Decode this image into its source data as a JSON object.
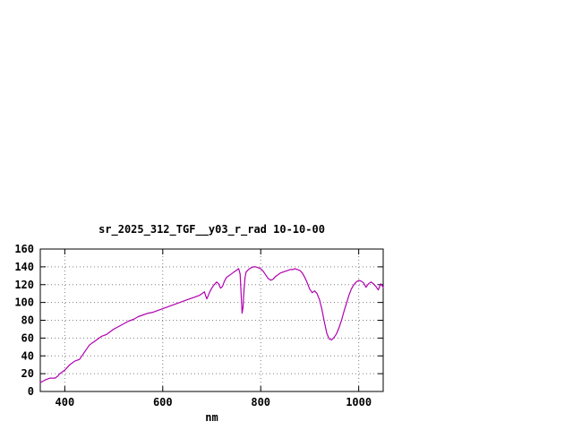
{
  "page": {
    "background": "#ffffff"
  },
  "chart_data": {
    "type": "line",
    "title": "sr_2025_312_TGF__y03_r_rad 10-10-00",
    "xlabel": "nm",
    "ylabel": "",
    "xlim": [
      350,
      1050
    ],
    "ylim": [
      0,
      160
    ],
    "xticks_labeled": [
      400,
      600,
      800,
      1000
    ],
    "yticks": [
      0,
      20,
      40,
      60,
      80,
      100,
      120,
      140,
      160
    ],
    "grid": true,
    "grid_color": "#808080",
    "axis_color": "#000000",
    "line_color": "#b000b0",
    "legend": "none",
    "series": [
      {
        "name": "sr_2025_312_TGF__y03_r_rad",
        "x": [
          350,
          360,
          370,
          380,
          385,
          390,
          395,
          400,
          405,
          410,
          415,
          420,
          425,
          430,
          435,
          440,
          445,
          450,
          455,
          460,
          465,
          470,
          475,
          480,
          485,
          490,
          495,
          500,
          510,
          520,
          530,
          540,
          550,
          560,
          570,
          580,
          590,
          600,
          610,
          620,
          630,
          640,
          650,
          660,
          670,
          675,
          680,
          685,
          688,
          690,
          693,
          696,
          700,
          705,
          710,
          714,
          718,
          722,
          726,
          730,
          735,
          740,
          745,
          750,
          755,
          758,
          760,
          762,
          764,
          766,
          768,
          770,
          775,
          780,
          785,
          790,
          795,
          800,
          805,
          810,
          815,
          820,
          825,
          830,
          835,
          840,
          845,
          850,
          855,
          860,
          865,
          870,
          875,
          880,
          885,
          890,
          895,
          900,
          905,
          910,
          915,
          920,
          925,
          930,
          935,
          940,
          945,
          950,
          955,
          960,
          965,
          970,
          975,
          980,
          985,
          990,
          995,
          1000,
          1005,
          1010,
          1015,
          1020,
          1025,
          1030,
          1035,
          1040,
          1045,
          1050
        ],
        "y": [
          10,
          13,
          15,
          15,
          17,
          20,
          22,
          24,
          27,
          30,
          32,
          34,
          35,
          36,
          40,
          44,
          48,
          52,
          54,
          56,
          58,
          60,
          62,
          63,
          64,
          66,
          68,
          70,
          73,
          76,
          79,
          81,
          84,
          86,
          88,
          89,
          91,
          93,
          95,
          97,
          99,
          101,
          103,
          105,
          107,
          108,
          110,
          112,
          107,
          104,
          108,
          112,
          116,
          120,
          123,
          121,
          116,
          118,
          124,
          128,
          130,
          132,
          134,
          136,
          138,
          132,
          110,
          88,
          95,
          115,
          128,
          134,
          137,
          139,
          140,
          140,
          139,
          138,
          135,
          131,
          127,
          125,
          126,
          129,
          131,
          133,
          134,
          135,
          136,
          137,
          137,
          138,
          137,
          136,
          133,
          128,
          122,
          115,
          111,
          113,
          110,
          103,
          92,
          78,
          65,
          59,
          58,
          61,
          65,
          72,
          80,
          90,
          99,
          108,
          115,
          120,
          123,
          125,
          124,
          122,
          117,
          121,
          123,
          121,
          118,
          114,
          121,
          117
        ]
      }
    ]
  }
}
